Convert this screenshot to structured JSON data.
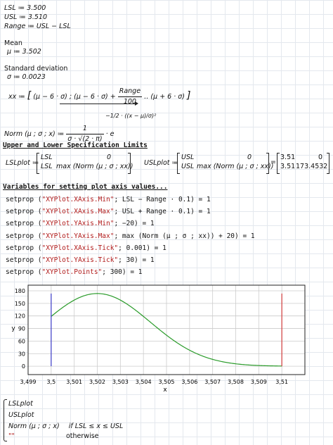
{
  "defs": {
    "lsl": "LSL ≔ 3.500",
    "usl": "USL ≔ 3.510",
    "range": "Range ≔ USL − LSL"
  },
  "mean": {
    "label": "Mean",
    "def": "μ ≔ 3.502"
  },
  "sd": {
    "label": "Standard deviation",
    "def": "σ ≔ 0.0023"
  },
  "xx": {
    "lhs": "xx ≔",
    "a": "(μ − 6 · σ) ; (μ − 6 · σ) +",
    "frac_num": "Range",
    "frac_den": "100",
    "b": "‥ (μ + 6 · σ)"
  },
  "norm": {
    "lhs": "Norm (μ ; σ ; x) ≔",
    "frac_num": "1",
    "frac_den": "σ · √(2 · π)",
    "e": "· e",
    "exp": "−1/2 · ((x − μ)/σ)²"
  },
  "limits_heading": "Upper and Lower Specification Limits",
  "lsl_plot": {
    "lhs": "LSLplot ≔",
    "r1c1": "LSL",
    "r1c2": "0",
    "r2c1": "LSL",
    "r2c2": "max (Norm (μ ; σ ; xx))"
  },
  "usl_plot": {
    "lhs": "USLplot ≔",
    "r1c1": "USL",
    "r1c2": "0",
    "r2c1": "USL",
    "r2c2": "max (Norm (μ ; σ ; xx))",
    "eq": "=",
    "v11": "3.51",
    "v12": "0",
    "v21": "3.51",
    "v22": "173.4532"
  },
  "vars_heading": "Variables  for setting  plot  axis values...",
  "setprops": [
    {
      "fn": "setprop (",
      "arg": "\"XYPlot.XAxis.Min\"",
      "rest": "; LSL − Range · 0.1) = 1"
    },
    {
      "fn": "setprop (",
      "arg": "\"XYPlot.XAxis.Max\"",
      "rest": "; USL + Range · 0.1) = 1"
    },
    {
      "fn": "setprop (",
      "arg": "\"XYPlot.YAxis.Min\"",
      "rest": "; −20) = 1"
    },
    {
      "fn": "setprop (",
      "arg": "\"XYPlot.YAxis.Max\"",
      "rest": "; max (Norm (μ ; σ ; xx)) + 20) = 1"
    },
    {
      "fn": "setprop (",
      "arg": "\"XYPlot.XAxis.Tick\"",
      "rest": "; 0.001) = 1"
    },
    {
      "fn": "setprop (",
      "arg": "\"XYPlot.YAxis.Tick\"",
      "rest": "; 30) = 1"
    },
    {
      "fn": "setprop (",
      "arg": "\"XYPlot.Points\"",
      "rest": "; 300) = 1"
    }
  ],
  "chart_data": {
    "type": "line",
    "xlabel": "x",
    "ylabel": "y",
    "xlim": [
      3.499,
      3.511
    ],
    "ylim": [
      -20,
      193.45
    ],
    "x_ticks": [
      "3,499",
      "3,5",
      "3,501",
      "3,502",
      "3,503",
      "3,504",
      "3,505",
      "3,506",
      "3,507",
      "3,508",
      "3,509",
      "3,51"
    ],
    "y_ticks": [
      "0",
      "30",
      "60",
      "90",
      "120",
      "150",
      "180"
    ],
    "grid": true,
    "series": [
      {
        "color": "#2a9b2a",
        "function": "normal",
        "mu": 3.502,
        "sigma": 0.0023,
        "x_range": [
          3.5,
          3.51
        ]
      },
      {
        "color": "#3b3bc8",
        "x": [
          3.5,
          3.5
        ],
        "y": [
          0,
          173.4532
        ]
      },
      {
        "color": "#d23b3b",
        "x": [
          3.51,
          3.51
        ],
        "y": [
          0,
          173.4532
        ]
      }
    ]
  },
  "piece": {
    "r1": "LSLplot",
    "r2": "USLplot",
    "r3a": "Norm (μ ; σ ; x)",
    "r3b": "if  LSL ≤ x ≤ USL",
    "r4a": "\"\"",
    "r4b": "otherwise"
  }
}
